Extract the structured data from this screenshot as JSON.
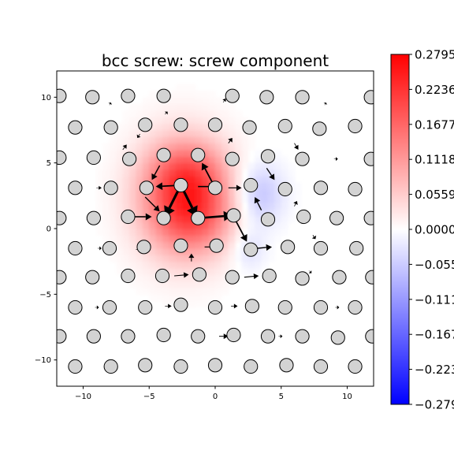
{
  "chart_data": {
    "type": "scatter",
    "title": "bcc screw: screw component",
    "xlabel": "",
    "ylabel": "",
    "xlim": [
      -12,
      12
    ],
    "ylim": [
      -12,
      12
    ],
    "xticks": [
      -10,
      -5,
      0,
      5,
      10
    ],
    "yticks": [
      -10,
      -5,
      0,
      5,
      10
    ],
    "xtick_labels": [
      "−10",
      "−5",
      "0",
      "5",
      "10"
    ],
    "ytick_labels": [
      "−10",
      "−5",
      "0",
      "5",
      "10"
    ],
    "grid": false,
    "colorbar": {
      "cmap": "bwr",
      "min": -0.2795,
      "max": 0.2795,
      "tick_values": [
        0.2795,
        0.2236,
        0.1677,
        0.1118,
        0.0559,
        0.0,
        -0.0559,
        -0.1118,
        -0.1677,
        -0.2236,
        -0.2795
      ],
      "tick_labels": [
        "0.2795",
        "0.2236",
        "0.1677",
        "0.1118",
        "0.0559",
        "0.0000",
        "−0.0559",
        "−0.1118",
        "−0.1677",
        "−0.2236",
        "−0.2795"
      ]
    },
    "field": [
      {
        "x": -2.4,
        "y": 2.4,
        "sx": 2.4,
        "sy": 3.0,
        "amp": 0.2
      },
      {
        "x": -1.2,
        "y": 1.0,
        "sx": 2.0,
        "sy": 2.0,
        "amp": 0.06
      },
      {
        "x": -2.0,
        "y": 4.5,
        "sx": 2.0,
        "sy": 1.5,
        "amp": 0.05
      },
      {
        "x": 3.3,
        "y": 2.6,
        "sx": 1.3,
        "sy": 1.7,
        "amp": -0.07
      },
      {
        "x": 2.5,
        "y": -1.6,
        "sx": 0.9,
        "sy": 1.1,
        "amp": -0.04
      }
    ],
    "atoms": [
      {
        "x": -11.8,
        "y": 10.1
      },
      {
        "x": -9.3,
        "y": 10.0
      },
      {
        "x": -6.6,
        "y": 10.1
      },
      {
        "x": -3.9,
        "y": 10.1
      },
      {
        "x": 1.3,
        "y": 10.1
      },
      {
        "x": 3.9,
        "y": 10.0
      },
      {
        "x": 6.6,
        "y": 10.0
      },
      {
        "x": 11.8,
        "y": 10.0
      },
      {
        "x": -10.6,
        "y": 7.7
      },
      {
        "x": -7.9,
        "y": 7.7
      },
      {
        "x": -5.3,
        "y": 7.9
      },
      {
        "x": -2.6,
        "y": 7.9
      },
      {
        "x": 0.0,
        "y": 7.9
      },
      {
        "x": 2.6,
        "y": 7.7
      },
      {
        "x": 5.3,
        "y": 7.8
      },
      {
        "x": 7.9,
        "y": 7.6
      },
      {
        "x": 10.6,
        "y": 7.8
      },
      {
        "x": -11.8,
        "y": 5.4
      },
      {
        "x": -9.2,
        "y": 5.4
      },
      {
        "x": -6.5,
        "y": 5.3
      },
      {
        "x": -3.9,
        "y": 5.6
      },
      {
        "x": -1.3,
        "y": 5.6
      },
      {
        "x": 1.3,
        "y": 5.3
      },
      {
        "x": 4.0,
        "y": 5.5
      },
      {
        "x": 6.6,
        "y": 5.3
      },
      {
        "x": 11.8,
        "y": 5.3
      },
      {
        "x": -10.6,
        "y": 3.1
      },
      {
        "x": -7.9,
        "y": 3.1
      },
      {
        "x": -5.2,
        "y": 3.1
      },
      {
        "x": -2.6,
        "y": 3.3
      },
      {
        "x": 0.0,
        "y": 3.1
      },
      {
        "x": 2.7,
        "y": 3.3
      },
      {
        "x": 5.3,
        "y": 3.0
      },
      {
        "x": 8.0,
        "y": 3.1
      },
      {
        "x": 10.6,
        "y": 3.0
      },
      {
        "x": -11.8,
        "y": 0.8
      },
      {
        "x": -9.2,
        "y": 0.8
      },
      {
        "x": -6.6,
        "y": 0.9
      },
      {
        "x": -3.9,
        "y": 0.8
      },
      {
        "x": -1.3,
        "y": 0.8
      },
      {
        "x": 1.4,
        "y": 1.0
      },
      {
        "x": 4.0,
        "y": 0.7
      },
      {
        "x": 6.7,
        "y": 0.9
      },
      {
        "x": 9.2,
        "y": 0.8
      },
      {
        "x": 11.8,
        "y": 0.8
      },
      {
        "x": -10.6,
        "y": -1.5
      },
      {
        "x": -8.0,
        "y": -1.5
      },
      {
        "x": -5.4,
        "y": -1.4
      },
      {
        "x": -2.6,
        "y": -1.3
      },
      {
        "x": 0.1,
        "y": -1.3
      },
      {
        "x": 2.7,
        "y": -1.6
      },
      {
        "x": 5.5,
        "y": -1.4
      },
      {
        "x": 8.0,
        "y": -1.5
      },
      {
        "x": 10.7,
        "y": -1.5
      },
      {
        "x": -11.8,
        "y": -3.7
      },
      {
        "x": -9.3,
        "y": -3.7
      },
      {
        "x": -6.6,
        "y": -3.6
      },
      {
        "x": -4.0,
        "y": -3.6
      },
      {
        "x": -1.2,
        "y": -3.5
      },
      {
        "x": 1.3,
        "y": -3.7
      },
      {
        "x": 4.1,
        "y": -3.6
      },
      {
        "x": 6.6,
        "y": -3.8
      },
      {
        "x": 9.4,
        "y": -3.7
      },
      {
        "x": 11.9,
        "y": -3.7
      },
      {
        "x": -10.6,
        "y": -6.0
      },
      {
        "x": -8.0,
        "y": -6.0
      },
      {
        "x": -5.3,
        "y": -6.0
      },
      {
        "x": -2.6,
        "y": -5.8
      },
      {
        "x": 0.0,
        "y": -6.0
      },
      {
        "x": 2.8,
        "y": -5.9
      },
      {
        "x": 5.3,
        "y": -6.0
      },
      {
        "x": 8.0,
        "y": -6.0
      },
      {
        "x": 10.6,
        "y": -6.0
      },
      {
        "x": -11.8,
        "y": -8.2
      },
      {
        "x": -9.2,
        "y": -8.2
      },
      {
        "x": -6.6,
        "y": -8.2
      },
      {
        "x": -3.9,
        "y": -8.1
      },
      {
        "x": -1.3,
        "y": -8.2
      },
      {
        "x": 1.4,
        "y": -8.1
      },
      {
        "x": 4.0,
        "y": -8.2
      },
      {
        "x": 6.6,
        "y": -8.2
      },
      {
        "x": 9.3,
        "y": -8.3
      },
      {
        "x": 11.9,
        "y": -8.2
      },
      {
        "x": -10.6,
        "y": -10.5
      },
      {
        "x": -7.9,
        "y": -10.5
      },
      {
        "x": -5.3,
        "y": -10.4
      },
      {
        "x": -2.6,
        "y": -10.5
      },
      {
        "x": 0.0,
        "y": -10.4
      },
      {
        "x": 2.7,
        "y": -10.5
      },
      {
        "x": 5.4,
        "y": -10.4
      },
      {
        "x": 8.0,
        "y": -10.5
      },
      {
        "x": 10.6,
        "y": -10.5
      }
    ],
    "arrows": [
      {
        "x1": -2.6,
        "y1": 3.3,
        "x2": -3.8,
        "y2": 0.9,
        "w": 3.2
      },
      {
        "x1": -2.6,
        "y1": 3.3,
        "x2": -1.4,
        "y2": 0.9,
        "w": 3.2
      },
      {
        "x1": -1.2,
        "y1": 0.8,
        "x2": 1.3,
        "y2": 1.0,
        "w": 2.6
      },
      {
        "x1": -2.6,
        "y1": 3.3,
        "x2": -4.5,
        "y2": 3.2,
        "w": 1.8
      },
      {
        "x1": 0.0,
        "y1": 3.1,
        "x2": -1.0,
        "y2": 5.0,
        "w": 1.8
      },
      {
        "x1": -1.3,
        "y1": 3.2,
        "x2": 0.0,
        "y2": 3.2,
        "w": 1.6
      },
      {
        "x1": 1.4,
        "y1": 0.9,
        "x2": 2.4,
        "y2": -1.0,
        "w": 1.8
      },
      {
        "x1": -5.3,
        "y1": 2.4,
        "x2": -4.2,
        "y2": 1.3,
        "w": 1.4
      },
      {
        "x1": -4.2,
        "y1": 4.8,
        "x2": -4.8,
        "y2": 3.7,
        "w": 1.4
      },
      {
        "x1": -6.2,
        "y1": 0.9,
        "x2": -4.8,
        "y2": 0.9,
        "w": 1.6
      },
      {
        "x1": -0.8,
        "y1": -1.4,
        "x2": 0.3,
        "y2": -1.4,
        "w": 1.2
      },
      {
        "x1": -1.8,
        "y1": -2.5,
        "x2": -1.8,
        "y2": -1.9,
        "w": 1.1
      },
      {
        "x1": 1.0,
        "y1": 3.1,
        "x2": 2.0,
        "y2": 3.1,
        "w": 1.2
      },
      {
        "x1": 3.5,
        "y1": 1.4,
        "x2": 3.0,
        "y2": 2.4,
        "w": 1.4
      },
      {
        "x1": 3.2,
        "y1": -1.5,
        "x2": 4.3,
        "y2": -1.4,
        "w": 1.4
      },
      {
        "x1": 3.9,
        "y1": 4.6,
        "x2": 4.5,
        "y2": 3.7,
        "w": 1.3
      },
      {
        "x1": 1.0,
        "y1": 6.5,
        "x2": 1.3,
        "y2": 6.9,
        "w": 1.0
      },
      {
        "x1": -3.1,
        "y1": -3.6,
        "x2": -2.0,
        "y2": -3.5,
        "w": 1.1
      },
      {
        "x1": 2.2,
        "y1": -3.7,
        "x2": 3.3,
        "y2": -3.6,
        "w": 1.1
      },
      {
        "x1": 0.3,
        "y1": -8.2,
        "x2": 1.0,
        "y2": -8.2,
        "w": 1.0
      },
      {
        "x1": 6.0,
        "y1": 6.5,
        "x2": 6.3,
        "y2": 6.0,
        "w": 0.9
      },
      {
        "x1": 7.4,
        "y1": -0.5,
        "x2": 7.6,
        "y2": -0.8,
        "w": 0.9
      },
      {
        "x1": -7.0,
        "y1": 6.0,
        "x2": -6.7,
        "y2": 6.4,
        "w": 0.8
      },
      {
        "x1": 6.0,
        "y1": 1.7,
        "x2": 6.2,
        "y2": 2.1,
        "w": 0.8
      },
      {
        "x1": 1.2,
        "y1": -5.9,
        "x2": 1.7,
        "y2": -5.9,
        "w": 0.8
      },
      {
        "x1": -3.8,
        "y1": -5.9,
        "x2": -3.3,
        "y2": -5.9,
        "w": 0.7
      },
      {
        "x1": -6.0,
        "y1": -1.6,
        "x2": -5.7,
        "y2": -1.5,
        "w": 0.6
      },
      {
        "x1": -5.7,
        "y1": 7.2,
        "x2": -5.9,
        "y2": 6.9,
        "w": 0.7
      },
      {
        "x1": -3.8,
        "y1": 8.7,
        "x2": -3.6,
        "y2": 8.9,
        "w": 0.6
      },
      {
        "x1": 0.6,
        "y1": 9.6,
        "x2": 0.8,
        "y2": 9.9,
        "w": 0.6
      },
      {
        "x1": -7.0,
        "y1": -3.6,
        "x2": -6.7,
        "y2": -3.6,
        "w": 0.5
      },
      {
        "x1": 7.1,
        "y1": -3.2,
        "x2": 7.3,
        "y2": -3.4,
        "w": 0.5
      },
      {
        "x1": 9.0,
        "y1": 5.3,
        "x2": 9.3,
        "y2": 5.3,
        "w": 0.5
      },
      {
        "x1": -9.0,
        "y1": 3.1,
        "x2": -8.6,
        "y2": 3.1,
        "w": 0.5
      },
      {
        "x1": -8.9,
        "y1": -1.5,
        "x2": -8.6,
        "y2": -1.5,
        "w": 0.5
      },
      {
        "x1": 9.0,
        "y1": 0.6,
        "x2": 9.3,
        "y2": 0.6,
        "w": 0.5
      },
      {
        "x1": -8.0,
        "y1": 9.4,
        "x2": -7.9,
        "y2": 9.6,
        "w": 0.5
      },
      {
        "x1": 8.3,
        "y1": 9.4,
        "x2": 8.4,
        "y2": 9.6,
        "w": 0.5
      },
      {
        "x1": -3.8,
        "y1": -8.1,
        "x2": -3.4,
        "y2": -8.1,
        "w": 0.5
      },
      {
        "x1": 4.8,
        "y1": -8.2,
        "x2": 5.1,
        "y2": -8.2,
        "w": 0.5
      },
      {
        "x1": 9.1,
        "y1": -6.0,
        "x2": 9.4,
        "y2": -6.0,
        "w": 0.5
      },
      {
        "x1": -9.1,
        "y1": -6.0,
        "x2": -8.8,
        "y2": -6.0,
        "w": 0.5
      }
    ]
  }
}
